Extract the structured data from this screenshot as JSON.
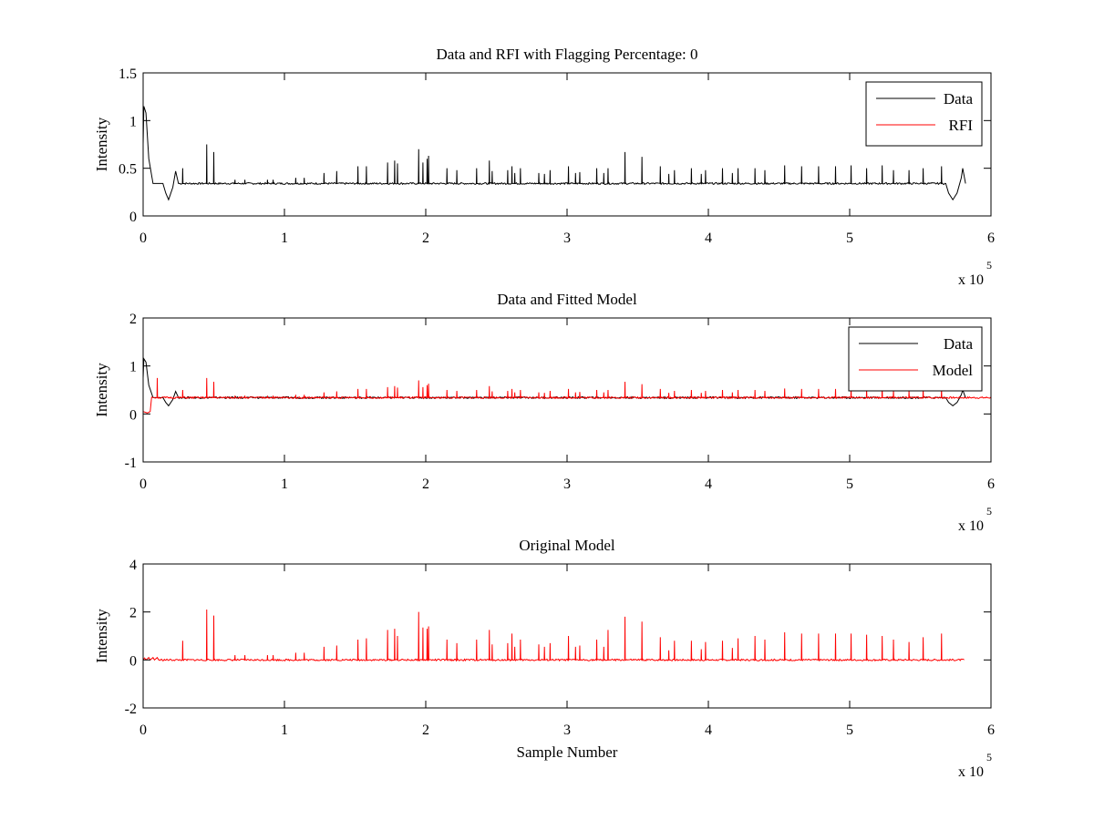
{
  "chart_data": [
    {
      "type": "line",
      "title": "Data and RFI with Flagging Percentage: 0",
      "xlabel": "",
      "ylabel": "Intensity",
      "xlim": [
        0,
        6
      ],
      "ylim": [
        0,
        1.5
      ],
      "xticks": [
        "0",
        "1",
        "2",
        "3",
        "4",
        "5",
        "6"
      ],
      "yticks": [
        "0",
        "0.5",
        "1",
        "1.5"
      ],
      "x_multiplier_base": "x 10",
      "x_multiplier_exp": "5",
      "legend": {
        "position": "top-right",
        "entries": [
          {
            "label": "Data",
            "color": "#000000"
          },
          {
            "label": "RFI",
            "color": "#ff0000"
          }
        ]
      },
      "series": [
        {
          "name": "Data",
          "color": "#000000",
          "baseline": 0.34,
          "start_transient": [
            [
              0.0,
              0.75
            ],
            [
              0.005,
              1.15
            ],
            [
              0.02,
              1.08
            ],
            [
              0.04,
              0.6
            ],
            [
              0.07,
              0.34
            ],
            [
              0.14,
              0.34
            ],
            [
              0.16,
              0.24
            ],
            [
              0.18,
              0.17
            ],
            [
              0.21,
              0.3
            ],
            [
              0.23,
              0.47
            ],
            [
              0.25,
              0.34
            ]
          ],
          "end_transient": [
            [
              5.68,
              0.34
            ],
            [
              5.7,
              0.24
            ],
            [
              5.73,
              0.17
            ],
            [
              5.76,
              0.24
            ],
            [
              5.79,
              0.4
            ],
            [
              5.8,
              0.5
            ],
            [
              5.82,
              0.34
            ]
          ],
          "spikes": [
            [
              0.28,
              0.5
            ],
            [
              0.45,
              0.75
            ],
            [
              0.5,
              0.67
            ],
            [
              0.65,
              0.38
            ],
            [
              0.72,
              0.38
            ],
            [
              0.88,
              0.38
            ],
            [
              0.92,
              0.38
            ],
            [
              1.08,
              0.4
            ],
            [
              1.14,
              0.4
            ],
            [
              1.28,
              0.45
            ],
            [
              1.37,
              0.47
            ],
            [
              1.52,
              0.52
            ],
            [
              1.58,
              0.52
            ],
            [
              1.73,
              0.56
            ],
            [
              1.78,
              0.58
            ],
            [
              1.8,
              0.55
            ],
            [
              1.95,
              0.7
            ],
            [
              1.98,
              0.56
            ],
            [
              2.01,
              0.6
            ],
            [
              2.02,
              0.63
            ],
            [
              2.15,
              0.5
            ],
            [
              2.22,
              0.48
            ],
            [
              2.36,
              0.5
            ],
            [
              2.45,
              0.58
            ],
            [
              2.47,
              0.47
            ],
            [
              2.58,
              0.48
            ],
            [
              2.61,
              0.52
            ],
            [
              2.63,
              0.45
            ],
            [
              2.67,
              0.5
            ],
            [
              2.8,
              0.45
            ],
            [
              2.84,
              0.44
            ],
            [
              2.88,
              0.48
            ],
            [
              3.01,
              0.52
            ],
            [
              3.06,
              0.45
            ],
            [
              3.09,
              0.46
            ],
            [
              3.21,
              0.5
            ],
            [
              3.26,
              0.45
            ],
            [
              3.29,
              0.5
            ],
            [
              3.41,
              0.67
            ],
            [
              3.53,
              0.62
            ],
            [
              3.66,
              0.52
            ],
            [
              3.72,
              0.44
            ],
            [
              3.76,
              0.48
            ],
            [
              3.88,
              0.5
            ],
            [
              3.95,
              0.44
            ],
            [
              3.98,
              0.48
            ],
            [
              4.1,
              0.5
            ],
            [
              4.17,
              0.45
            ],
            [
              4.21,
              0.5
            ],
            [
              4.33,
              0.5
            ],
            [
              4.4,
              0.48
            ],
            [
              4.54,
              0.53
            ],
            [
              4.66,
              0.52
            ],
            [
              4.78,
              0.52
            ],
            [
              4.9,
              0.52
            ],
            [
              5.01,
              0.53
            ],
            [
              5.12,
              0.5
            ],
            [
              5.23,
              0.53
            ],
            [
              5.31,
              0.48
            ],
            [
              5.42,
              0.48
            ],
            [
              5.52,
              0.5
            ],
            [
              5.65,
              0.52
            ]
          ]
        },
        {
          "name": "RFI",
          "color": "#ff0000",
          "spikes": []
        }
      ]
    },
    {
      "type": "line",
      "title": "Data and Fitted Model",
      "xlabel": "",
      "ylabel": "Intensity",
      "xlim": [
        0,
        6
      ],
      "ylim": [
        -1,
        2
      ],
      "xticks": [
        "0",
        "1",
        "2",
        "3",
        "4",
        "5",
        "6"
      ],
      "yticks": [
        "-1",
        "0",
        "1",
        "2"
      ],
      "x_multiplier_base": "x 10",
      "x_multiplier_exp": "5",
      "legend": {
        "position": "top-right",
        "entries": [
          {
            "label": "Data",
            "color": "#000000"
          },
          {
            "label": "Model",
            "color": "#ff0000"
          }
        ]
      },
      "series": [
        {
          "name": "Data",
          "color": "#000000",
          "baseline": 0.34,
          "start_transient": [
            [
              0.0,
              0.75
            ],
            [
              0.005,
              1.15
            ],
            [
              0.02,
              1.08
            ],
            [
              0.04,
              0.6
            ],
            [
              0.07,
              0.34
            ],
            [
              0.14,
              0.34
            ],
            [
              0.16,
              0.24
            ],
            [
              0.18,
              0.17
            ],
            [
              0.21,
              0.3
            ],
            [
              0.23,
              0.47
            ],
            [
              0.25,
              0.34
            ]
          ],
          "end_transient": [
            [
              5.68,
              0.34
            ],
            [
              5.7,
              0.24
            ],
            [
              5.73,
              0.17
            ],
            [
              5.76,
              0.24
            ],
            [
              5.79,
              0.4
            ],
            [
              5.8,
              0.5
            ],
            [
              5.82,
              0.34
            ]
          ],
          "spikes": []
        },
        {
          "name": "Model",
          "color": "#ff0000",
          "baseline": 0.34,
          "start_transient": [
            [
              0.0,
              0.05
            ],
            [
              0.03,
              0.02
            ],
            [
              0.05,
              0.05
            ],
            [
              0.06,
              0.35
            ],
            [
              0.08,
              0.34
            ]
          ],
          "end_transient": [],
          "spikes": [
            [
              0.1,
              0.75
            ],
            [
              0.28,
              0.5
            ],
            [
              0.45,
              0.75
            ],
            [
              0.5,
              0.67
            ],
            [
              0.65,
              0.38
            ],
            [
              0.72,
              0.38
            ],
            [
              0.88,
              0.38
            ],
            [
              0.92,
              0.38
            ],
            [
              1.08,
              0.4
            ],
            [
              1.14,
              0.4
            ],
            [
              1.28,
              0.45
            ],
            [
              1.37,
              0.47
            ],
            [
              1.52,
              0.52
            ],
            [
              1.58,
              0.52
            ],
            [
              1.73,
              0.56
            ],
            [
              1.78,
              0.58
            ],
            [
              1.8,
              0.55
            ],
            [
              1.95,
              0.7
            ],
            [
              1.98,
              0.56
            ],
            [
              2.01,
              0.6
            ],
            [
              2.02,
              0.63
            ],
            [
              2.15,
              0.5
            ],
            [
              2.22,
              0.48
            ],
            [
              2.36,
              0.5
            ],
            [
              2.45,
              0.58
            ],
            [
              2.47,
              0.47
            ],
            [
              2.58,
              0.48
            ],
            [
              2.61,
              0.52
            ],
            [
              2.63,
              0.45
            ],
            [
              2.67,
              0.5
            ],
            [
              2.8,
              0.45
            ],
            [
              2.84,
              0.44
            ],
            [
              2.88,
              0.48
            ],
            [
              3.01,
              0.52
            ],
            [
              3.06,
              0.45
            ],
            [
              3.09,
              0.46
            ],
            [
              3.21,
              0.5
            ],
            [
              3.26,
              0.45
            ],
            [
              3.29,
              0.5
            ],
            [
              3.41,
              0.67
            ],
            [
              3.53,
              0.62
            ],
            [
              3.66,
              0.52
            ],
            [
              3.72,
              0.44
            ],
            [
              3.76,
              0.48
            ],
            [
              3.88,
              0.5
            ],
            [
              3.95,
              0.44
            ],
            [
              3.98,
              0.48
            ],
            [
              4.1,
              0.5
            ],
            [
              4.17,
              0.45
            ],
            [
              4.21,
              0.5
            ],
            [
              4.33,
              0.5
            ],
            [
              4.4,
              0.48
            ],
            [
              4.54,
              0.53
            ],
            [
              4.66,
              0.52
            ],
            [
              4.78,
              0.52
            ],
            [
              4.9,
              0.52
            ],
            [
              5.01,
              0.53
            ],
            [
              5.12,
              0.5
            ],
            [
              5.23,
              0.53
            ],
            [
              5.31,
              0.48
            ],
            [
              5.42,
              0.48
            ],
            [
              5.52,
              0.5
            ],
            [
              5.65,
              0.52
            ]
          ]
        }
      ]
    },
    {
      "type": "line",
      "title": "Original Model",
      "xlabel": "Sample Number",
      "ylabel": "Intensity",
      "xlim": [
        0,
        6
      ],
      "ylim": [
        -2,
        4
      ],
      "xticks": [
        "0",
        "1",
        "2",
        "3",
        "4",
        "5",
        "6"
      ],
      "yticks": [
        "-2",
        "0",
        "2",
        "4"
      ],
      "x_multiplier_base": "x 10",
      "x_multiplier_exp": "5",
      "series": [
        {
          "name": "",
          "color": "#ff0000",
          "baseline": 0.0,
          "x_end": 5.81,
          "start_transient": [
            [
              0.0,
              0.0
            ],
            [
              0.01,
              0.08
            ],
            [
              0.02,
              0.0
            ],
            [
              0.04,
              0.1
            ],
            [
              0.05,
              0.0
            ],
            [
              0.07,
              0.1
            ],
            [
              0.08,
              0.0
            ],
            [
              0.1,
              0.1
            ],
            [
              0.11,
              0.0
            ]
          ],
          "end_transient": [],
          "spikes": [
            [
              0.28,
              0.8
            ],
            [
              0.45,
              2.1
            ],
            [
              0.5,
              1.85
            ],
            [
              0.65,
              0.2
            ],
            [
              0.72,
              0.2
            ],
            [
              0.88,
              0.2
            ],
            [
              0.92,
              0.2
            ],
            [
              1.08,
              0.3
            ],
            [
              1.14,
              0.3
            ],
            [
              1.28,
              0.55
            ],
            [
              1.37,
              0.6
            ],
            [
              1.52,
              0.85
            ],
            [
              1.58,
              0.9
            ],
            [
              1.73,
              1.25
            ],
            [
              1.78,
              1.3
            ],
            [
              1.8,
              1.0
            ],
            [
              1.95,
              2.0
            ],
            [
              1.98,
              1.35
            ],
            [
              2.01,
              1.3
            ],
            [
              2.02,
              1.4
            ],
            [
              2.15,
              0.85
            ],
            [
              2.22,
              0.7
            ],
            [
              2.36,
              0.85
            ],
            [
              2.45,
              1.25
            ],
            [
              2.47,
              0.65
            ],
            [
              2.58,
              0.7
            ],
            [
              2.61,
              1.1
            ],
            [
              2.63,
              0.55
            ],
            [
              2.67,
              0.85
            ],
            [
              2.8,
              0.65
            ],
            [
              2.84,
              0.55
            ],
            [
              2.88,
              0.7
            ],
            [
              3.01,
              1.0
            ],
            [
              3.06,
              0.55
            ],
            [
              3.09,
              0.6
            ],
            [
              3.21,
              0.85
            ],
            [
              3.26,
              0.55
            ],
            [
              3.29,
              1.25
            ],
            [
              3.41,
              1.8
            ],
            [
              3.53,
              1.6
            ],
            [
              3.66,
              0.95
            ],
            [
              3.72,
              0.4
            ],
            [
              3.76,
              0.8
            ],
            [
              3.88,
              0.8
            ],
            [
              3.95,
              0.45
            ],
            [
              3.98,
              0.75
            ],
            [
              4.1,
              0.8
            ],
            [
              4.17,
              0.5
            ],
            [
              4.21,
              0.9
            ],
            [
              4.33,
              1.0
            ],
            [
              4.4,
              0.85
            ],
            [
              4.54,
              1.15
            ],
            [
              4.66,
              1.1
            ],
            [
              4.78,
              1.1
            ],
            [
              4.9,
              1.1
            ],
            [
              5.01,
              1.1
            ],
            [
              5.12,
              1.05
            ],
            [
              5.23,
              1.0
            ],
            [
              5.31,
              0.85
            ],
            [
              5.42,
              0.75
            ],
            [
              5.52,
              0.95
            ],
            [
              5.65,
              1.1
            ]
          ]
        }
      ]
    }
  ]
}
